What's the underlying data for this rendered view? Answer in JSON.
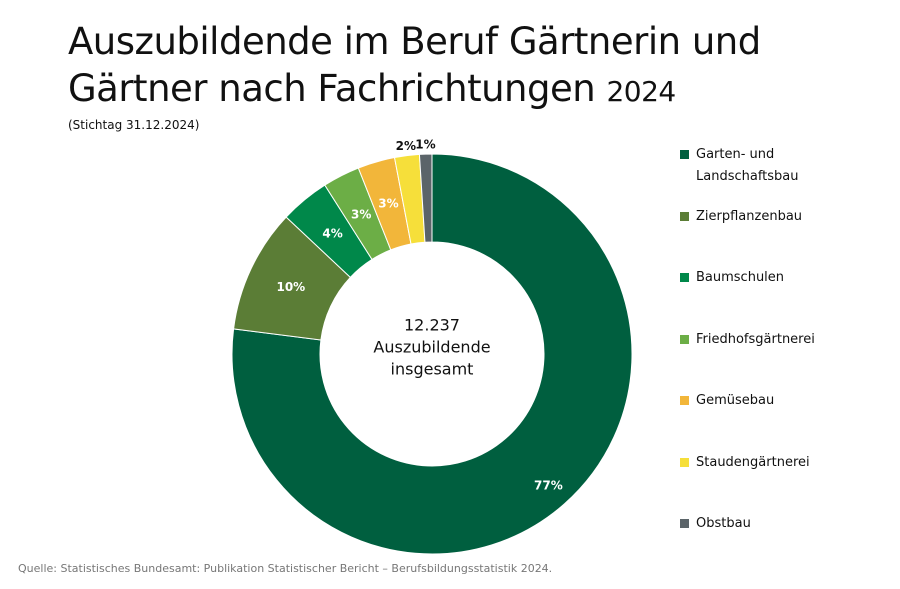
{
  "chart_data": {
    "type": "donut",
    "title": "Auszubildende im Beruf Gärtnerin und Gärtner nach Fachrichtungen",
    "title_year": "2024",
    "subtitle": "(Stichtag 31.12.2024)",
    "center_label": [
      "12.237",
      "Auszubildende",
      "insgesamt"
    ],
    "source": "Quelle: Statistisches Bundesamt: Publikation Statistischer Bericht – Berufsbildungsstatistik 2024.",
    "categories": [
      "Garten- und Landschaftsbau",
      "Zierpflanzenbau",
      "Baumschulen",
      "Friedhofsgärtnerei",
      "Gemüsebau",
      "Staudengärtnerei",
      "Obstbau"
    ],
    "values": [
      77,
      10,
      4,
      3,
      3,
      2,
      1
    ],
    "value_labels": [
      "77%",
      "10%",
      "4%",
      "3%",
      "3%",
      "2%",
      "1%"
    ],
    "colors": [
      "#005f3f",
      "#5b7d36",
      "#00884a",
      "#6cae46",
      "#f2b63a",
      "#f6df3a",
      "#5b6469"
    ]
  }
}
